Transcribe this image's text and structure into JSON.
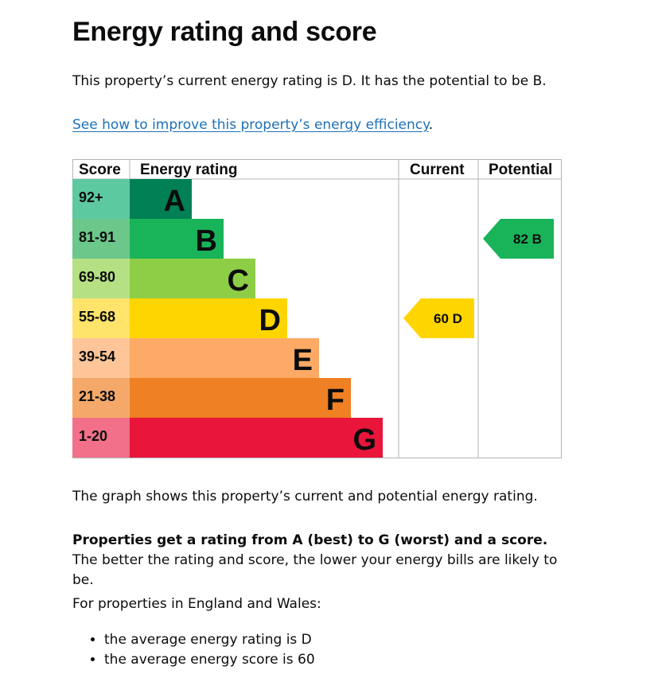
{
  "page": {
    "title": "Energy rating and score",
    "intro": "This property’s current energy rating is D. It has the potential to be B.",
    "improve_link": "See how to improve this property’s energy efficiency",
    "improve_link_suffix": ".",
    "graph_description": "The graph shows this property’s current and potential energy rating.",
    "rating_explainer_bold": "Properties get a rating from A (best) to G (worst) and a score.",
    "rating_explainer_rest": " The better the rating and score, the lower your energy bills are likely to be.",
    "region_intro": "For properties in England and Wales:",
    "bullets": [
      "the average energy rating is D",
      "the average energy score is 60"
    ]
  },
  "chart_data": {
    "type": "bar",
    "headers": {
      "score": "Score",
      "energy_rating": "Energy rating",
      "current": "Current",
      "potential": "Potential"
    },
    "bands": [
      {
        "score": "92+",
        "letter": "A",
        "band_color": "#008054",
        "score_color": "#5dc9a0"
      },
      {
        "score": "81-91",
        "letter": "B",
        "band_color": "#19b459",
        "score_color": "#6cc78a"
      },
      {
        "score": "69-80",
        "letter": "C",
        "band_color": "#8dce46",
        "score_color": "#b6e084"
      },
      {
        "score": "55-68",
        "letter": "D",
        "band_color": "#ffd500",
        "score_color": "#ffe36a"
      },
      {
        "score": "39-54",
        "letter": "E",
        "band_color": "#fcaa65",
        "score_color": "#fdc598"
      },
      {
        "score": "21-38",
        "letter": "F",
        "band_color": "#ef8023",
        "score_color": "#f4a96a"
      },
      {
        "score": "1-20",
        "letter": "G",
        "band_color": "#e9153b",
        "score_color": "#f27089"
      }
    ],
    "current": {
      "value": 60,
      "letter": "D",
      "band_index": 3,
      "label": "60 D",
      "color": "#ffd500"
    },
    "potential": {
      "value": 82,
      "letter": "B",
      "band_index": 1,
      "label": "82 B",
      "color": "#19b459"
    }
  }
}
